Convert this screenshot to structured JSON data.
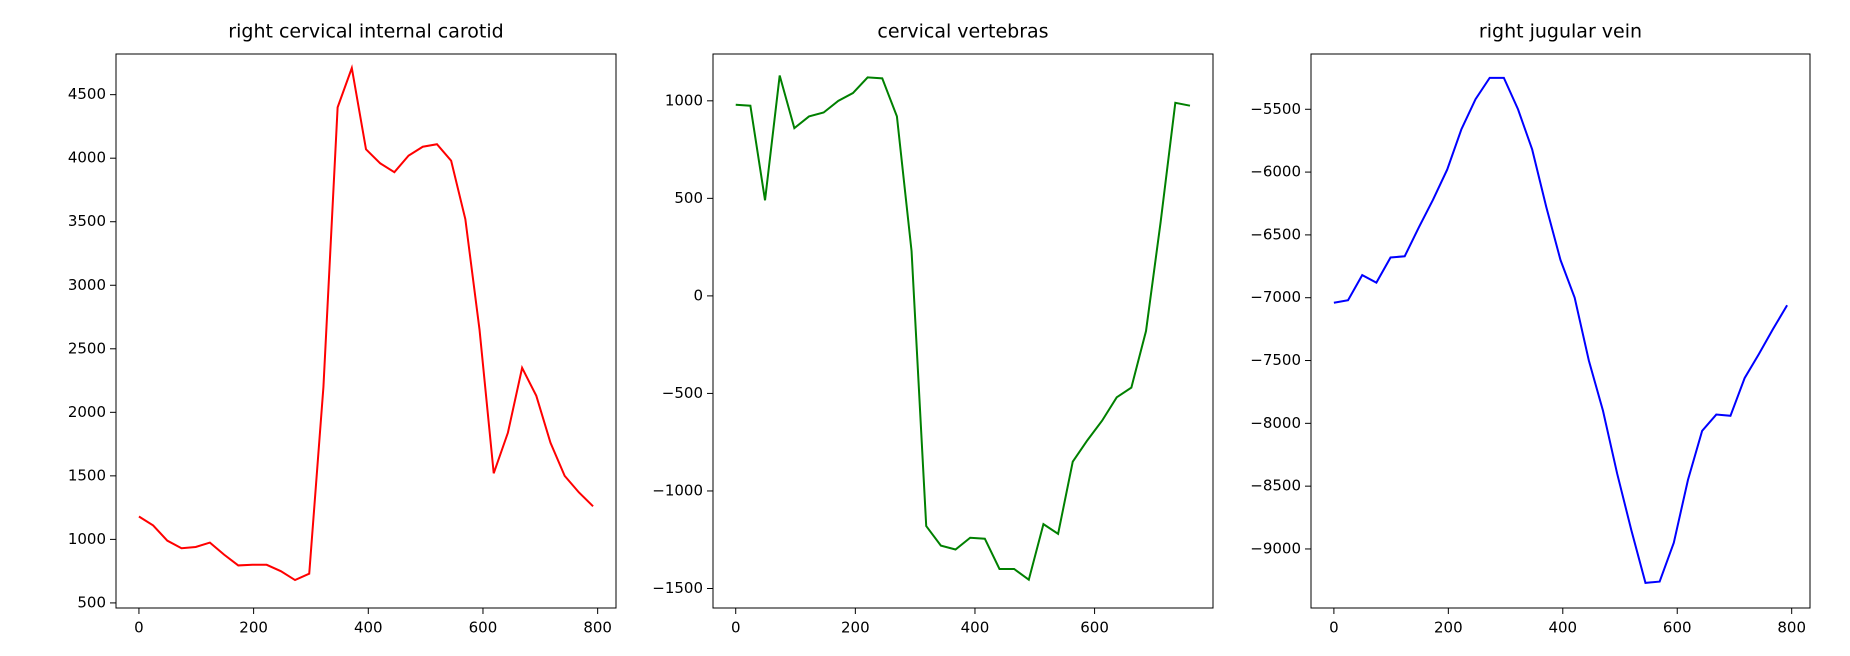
{
  "chart_data": [
    {
      "type": "line",
      "title": "right cervical internal carotid",
      "x": [
        0,
        24.75,
        49.5,
        74.25,
        99,
        123.75,
        148.5,
        173.25,
        198,
        222.75,
        247.5,
        272.25,
        297,
        321.75,
        346.5,
        371.25,
        396,
        420.75,
        445.5,
        470.25,
        495,
        519.75,
        544.5,
        569.25,
        594,
        618.75,
        643.5,
        668.25,
        693,
        717.75,
        742.5,
        767.25,
        792
      ],
      "series": [
        {
          "name": "right cervical internal carotid",
          "color": "#ff0000",
          "values": [
            1180,
            1110,
            990,
            930,
            940,
            975,
            880,
            795,
            800,
            800,
            750,
            680,
            730,
            2200,
            4400,
            4710,
            4070,
            3960,
            3890,
            4020,
            4090,
            4110,
            3980,
            3520,
            2650,
            1520,
            1840,
            2350,
            2130,
            1760,
            1500,
            1370,
            1260
          ]
        }
      ],
      "xlim": [
        -40,
        832
      ],
      "xticks": [
        0,
        200,
        400,
        600,
        800
      ],
      "ylim": [
        460,
        4820
      ],
      "yticks": [
        500,
        1000,
        1500,
        2000,
        2500,
        3000,
        3500,
        4000,
        4500
      ]
    },
    {
      "type": "line",
      "title": "cervical vertebras",
      "x": [
        0,
        24.5,
        49,
        73.5,
        98,
        122.5,
        147,
        171.5,
        196,
        220.5,
        245,
        269.5,
        294,
        318.5,
        343,
        367.5,
        392,
        416.5,
        441,
        465.5,
        490,
        514.5,
        539,
        563.5,
        588,
        612.5,
        637,
        661.5,
        686,
        710.5,
        735,
        759.5
      ],
      "series": [
        {
          "name": "cervical vertebras",
          "color": "#008000",
          "values": [
            980,
            975,
            490,
            1130,
            860,
            920,
            940,
            1000,
            1040,
            1120,
            1115,
            920,
            230,
            -1180,
            -1280,
            -1300,
            -1240,
            -1245,
            -1400,
            -1400,
            -1455,
            -1170,
            -1220,
            -850,
            -740,
            -640,
            -520,
            -470,
            -180,
            380,
            990,
            975
          ]
        }
      ],
      "xlim": [
        -38,
        798
      ],
      "xticks": [
        0,
        200,
        400,
        600
      ],
      "ylim": [
        -1600,
        1240
      ],
      "yticks": [
        {
          "value": -1500,
          "label": "−1500"
        },
        {
          "value": -1000,
          "label": "−1000"
        },
        {
          "value": -500,
          "label": "−500"
        },
        0,
        500,
        1000
      ]
    },
    {
      "type": "line",
      "title": "right jugular vein",
      "x": [
        0,
        24.75,
        49.5,
        74.25,
        99,
        123.75,
        148.5,
        173.25,
        198,
        222.75,
        247.5,
        272.25,
        297,
        321.75,
        346.5,
        371.25,
        396,
        420.75,
        445.5,
        470.25,
        495,
        519.75,
        544.5,
        569.25,
        594,
        618.75,
        643.5,
        668.25,
        693,
        717.75,
        742.5,
        767.25,
        792
      ],
      "series": [
        {
          "name": "right jugular vein",
          "color": "#0000ff",
          "values": [
            -7040,
            -7020,
            -6820,
            -6880,
            -6680,
            -6670,
            -6440,
            -6220,
            -5980,
            -5660,
            -5420,
            -5250,
            -5250,
            -5500,
            -5820,
            -6280,
            -6700,
            -7000,
            -7500,
            -7900,
            -8400,
            -8850,
            -9270,
            -9260,
            -8950,
            -8450,
            -8060,
            -7930,
            -7940,
            -7640,
            -7450,
            -7250,
            -7060
          ]
        }
      ],
      "xlim": [
        -40,
        832
      ],
      "xticks": [
        0,
        200,
        400,
        600,
        800
      ],
      "ylim": [
        -9470,
        -5060
      ],
      "yticks": [
        {
          "value": -9000,
          "label": "−9000"
        },
        {
          "value": -8500,
          "label": "−8500"
        },
        {
          "value": -8000,
          "label": "−8000"
        },
        {
          "value": -7500,
          "label": "−7500"
        },
        {
          "value": -7000,
          "label": "−7000"
        },
        {
          "value": -6500,
          "label": "−6500"
        },
        {
          "value": -6000,
          "label": "−6000"
        },
        {
          "value": -5500,
          "label": "−5500"
        }
      ]
    }
  ]
}
